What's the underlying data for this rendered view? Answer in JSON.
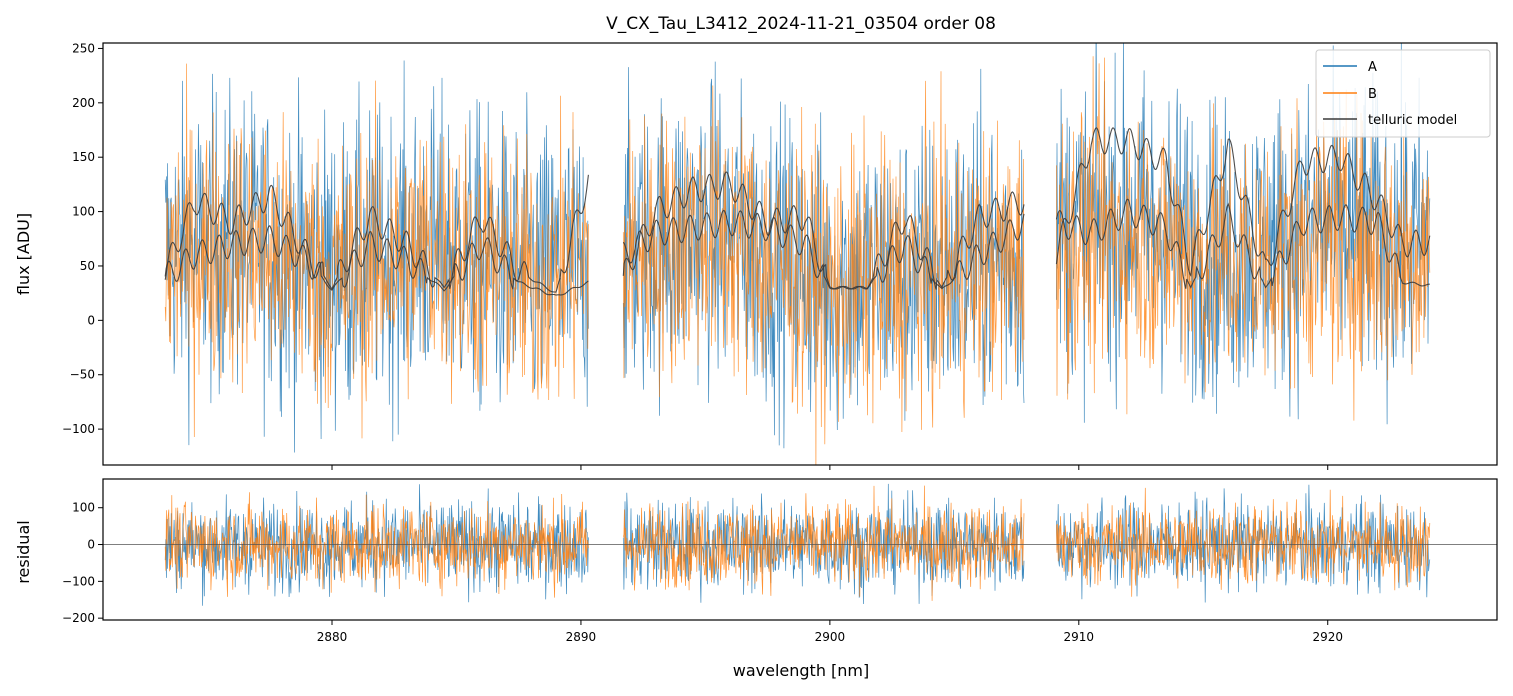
{
  "chart_data": [
    {
      "type": "line",
      "title": "V_CX_Tau_L3412_2024-11-21_03504  order 08",
      "xlabel": "",
      "ylabel": "flux [ADU]",
      "xlim": [
        2870.8,
        2926.8
      ],
      "ylim": [
        -133,
        255
      ],
      "yticks": [
        -100,
        -50,
        0,
        50,
        100,
        150,
        200,
        250
      ],
      "legend": {
        "placement": "top-right",
        "entries": [
          "A",
          "B",
          "telluric model"
        ]
      },
      "segments": [
        [
          2873.3,
          2890.3
        ],
        [
          2891.7,
          2907.8
        ],
        [
          2909.1,
          2924.1
        ]
      ],
      "series": [
        {
          "name": "A",
          "color": "#1f77b4",
          "description_values": {
            "x": [
              2873.3,
              2876,
              2880,
              2884,
              2888,
              2890.3,
              2891.7,
              2895,
              2900,
              2905,
              2907.8,
              2909.1,
              2912,
              2916,
              2920,
              2924.1
            ],
            "y": [
              60,
              75,
              45,
              70,
              40,
              55,
              60,
              85,
              35,
              50,
              60,
              80,
              95,
              60,
              85,
              70
            ]
          }
        },
        {
          "name": "B",
          "color": "#ff7f0e",
          "description_values": {
            "x": [
              2873.3,
              2876,
              2880,
              2884,
              2888,
              2890.3,
              2891.7,
              2895,
              2900,
              2905,
              2907.8,
              2909.1,
              2912,
              2916,
              2920,
              2924.1
            ],
            "y": [
              55,
              70,
              40,
              65,
              35,
              50,
              55,
              80,
              30,
              45,
              55,
              70,
              80,
              50,
              70,
              60
            ]
          }
        },
        {
          "name": "telluric model",
          "color": "#3a3a3a",
          "x": [
            2873.3,
            2874.5,
            2876,
            2877.5,
            2879,
            2880,
            2881.5,
            2883,
            2884.5,
            2886,
            2887.5,
            2889,
            2890.3,
            2891.7,
            2893,
            2894.5,
            2896,
            2897.5,
            2899,
            2900,
            2901.5,
            2903,
            2904.5,
            2906,
            2907.8,
            2909.1,
            2910.5,
            2912,
            2913.5,
            2914.5,
            2916,
            2917.5,
            2919,
            2920.5,
            2922,
            2923,
            2924.1
          ],
          "y_upper": [
            45,
            110,
            90,
            115,
            60,
            30,
            95,
            70,
            30,
            95,
            45,
            25,
            130,
            40,
            100,
            120,
            125,
            90,
            95,
            30,
            30,
            95,
            30,
            95,
            110,
            60,
            165,
            165,
            145,
            50,
            160,
            45,
            145,
            150,
            110,
            70,
            72
          ],
          "y_lower": [
            40,
            60,
            70,
            75,
            55,
            28,
            70,
            55,
            28,
            70,
            35,
            22,
            35,
            60,
            80,
            85,
            90,
            85,
            70,
            30,
            30,
            70,
            28,
            60,
            90,
            90,
            80,
            100,
            85,
            30,
            95,
            30,
            90,
            95,
            90,
            35,
            32
          ]
        }
      ]
    },
    {
      "type": "line",
      "title": "",
      "xlabel": "wavelength [nm]",
      "ylabel": "residual",
      "xlim": [
        2870.8,
        2926.8
      ],
      "ylim": [
        -205,
        178
      ],
      "xticks": [
        2880,
        2890,
        2900,
        2910,
        2920
      ],
      "yticks": [
        -200,
        -100,
        0,
        100
      ],
      "zero_line": 0,
      "series": [
        {
          "name": "A",
          "color": "#1f77b4",
          "spread": 80
        },
        {
          "name": "B",
          "color": "#ff7f0e",
          "spread": 75
        }
      ]
    }
  ]
}
